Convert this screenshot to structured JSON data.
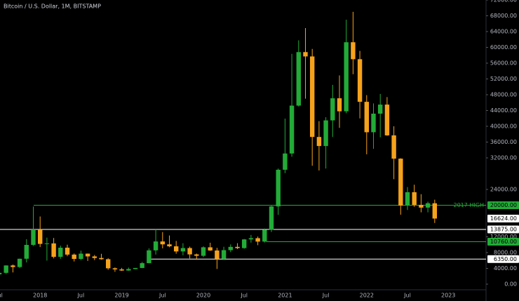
{
  "chart_data": {
    "type": "candlestick",
    "title": "Bitcoin / U.S. Dollar, 1M, BITSTAMP",
    "categories": [
      "Jul",
      null,
      null,
      null,
      null,
      null,
      "2018",
      null,
      null,
      null,
      null,
      null,
      "Jul",
      null,
      null,
      null,
      null,
      null,
      "2019",
      null,
      null,
      null,
      null,
      null,
      "Jul",
      null,
      null,
      null,
      null,
      null,
      "2020",
      null,
      null,
      null,
      null,
      null,
      "Jul",
      null,
      null,
      null,
      null,
      null,
      "2021",
      null,
      null,
      null,
      null,
      null,
      "Jul",
      null,
      null,
      null,
      null,
      null,
      "2022",
      null,
      null,
      null,
      null,
      null,
      "Jul",
      null,
      null,
      null,
      null,
      null,
      "2023"
    ],
    "open": [
      2480,
      2870,
      4740,
      4340,
      6440,
      9950,
      13860,
      10200,
      10330,
      6925,
      9240,
      7490,
      6390,
      7730,
      7030,
      6630,
      6320,
      4020,
      3740,
      3460,
      3830,
      4100,
      5320,
      8570,
      10820,
      10090,
      9590,
      8290,
      9150,
      7540,
      7190,
      9340,
      8530,
      6420,
      8620,
      9450,
      9140,
      11340,
      11650,
      10780,
      13800,
      19700,
      28990,
      33110,
      45240,
      58800,
      57700,
      37300,
      35000,
      41500,
      47100,
      43800,
      61300,
      57000,
      46200,
      38500,
      43200,
      45500,
      37700,
      31800,
      19900,
      23300,
      20100,
      19400,
      20500,
      null,
      null
    ],
    "high": [
      2920,
      4760,
      4980,
      6470,
      11400,
      19666,
      17150,
      11790,
      11700,
      9760,
      9990,
      7770,
      8490,
      7760,
      7400,
      7680,
      6570,
      4240,
      4120,
      4210,
      4120,
      5640,
      9070,
      13880,
      13200,
      12330,
      10950,
      10370,
      9510,
      7750,
      9580,
      10500,
      9190,
      9470,
      10080,
      10380,
      11440,
      12470,
      12060,
      14100,
      19860,
      29300,
      41950,
      58350,
      61790,
      64900,
      59600,
      41300,
      42300,
      50500,
      52900,
      67000,
      69000,
      59100,
      47900,
      45800,
      48200,
      47400,
      40000,
      31900,
      24600,
      25200,
      22800,
      20900,
      21400,
      null,
      null
    ],
    "low": [
      1830,
      2600,
      2970,
      4110,
      5510,
      9700,
      9400,
      5970,
      6530,
      6430,
      7080,
      5750,
      6070,
      5880,
      6100,
      6200,
      3650,
      3130,
      3350,
      3390,
      3770,
      4060,
      5320,
      7500,
      9070,
      9350,
      7710,
      7300,
      6520,
      6430,
      6850,
      8440,
      3850,
      6150,
      8110,
      8900,
      8980,
      10520,
      9880,
      10540,
      13220,
      17570,
      28130,
      32300,
      45000,
      47000,
      30000,
      28800,
      29300,
      37300,
      39600,
      43300,
      53200,
      42000,
      32900,
      34300,
      37200,
      37600,
      26600,
      17600,
      18800,
      19600,
      18200,
      18200,
      15500,
      null,
      null
    ],
    "close": [
      2870,
      4740,
      4340,
      6440,
      9950,
      13860,
      10200,
      10330,
      6925,
      9240,
      7490,
      6390,
      7730,
      7030,
      6630,
      6320,
      4020,
      3740,
      3460,
      3830,
      4100,
      5320,
      8570,
      10820,
      10090,
      9590,
      8290,
      9150,
      7540,
      7190,
      9340,
      8530,
      6420,
      8620,
      9450,
      9140,
      11340,
      11650,
      10780,
      13800,
      19700,
      28990,
      33110,
      45240,
      58800,
      57700,
      37300,
      35000,
      41500,
      47100,
      43800,
      61300,
      57000,
      46200,
      38500,
      43200,
      45500,
      37700,
      31800,
      19900,
      23300,
      20100,
      19400,
      20500,
      16624,
      null,
      null
    ],
    "up_color": "#22ab37",
    "down_color": "#f7a21b",
    "ylim": [
      0,
      72000
    ],
    "yticks": [
      {
        "value": 0,
        "label": "0.00"
      },
      {
        "value": 4000,
        "label": "4000.00"
      },
      {
        "value": 8000,
        "label": "8000.00"
      },
      {
        "value": 12000,
        "label": "12000.00"
      },
      {
        "value": 24000,
        "label": "24000.00"
      },
      {
        "value": 32000,
        "label": "32000.00"
      },
      {
        "value": 36000,
        "label": "36000.00"
      },
      {
        "value": 40000,
        "label": "40000.00"
      },
      {
        "value": 44000,
        "label": "44000.00"
      },
      {
        "value": 48000,
        "label": "48000.00"
      },
      {
        "value": 52000,
        "label": "52000.00"
      },
      {
        "value": 56000,
        "label": "56000.00"
      },
      {
        "value": 60000,
        "label": "60000.00"
      },
      {
        "value": 64000,
        "label": "64000.00"
      },
      {
        "value": 68000,
        "label": "68000.00"
      },
      {
        "value": 72000,
        "label": "72000.00"
      }
    ],
    "levels": [
      {
        "value": 20000,
        "label": "20000.00",
        "name": "2017 HIGH",
        "color": "#22ab37"
      },
      {
        "value": 13875,
        "label": "13875.00",
        "color": "#ffffff"
      },
      {
        "value": 10760,
        "label": "10760.00",
        "color": "#22ab37"
      },
      {
        "value": 6350,
        "label": "6350.00",
        "color": "#ffffff"
      }
    ],
    "last_price": {
      "value": 16624,
      "label": "16624.00",
      "color": "#ffffff"
    }
  }
}
